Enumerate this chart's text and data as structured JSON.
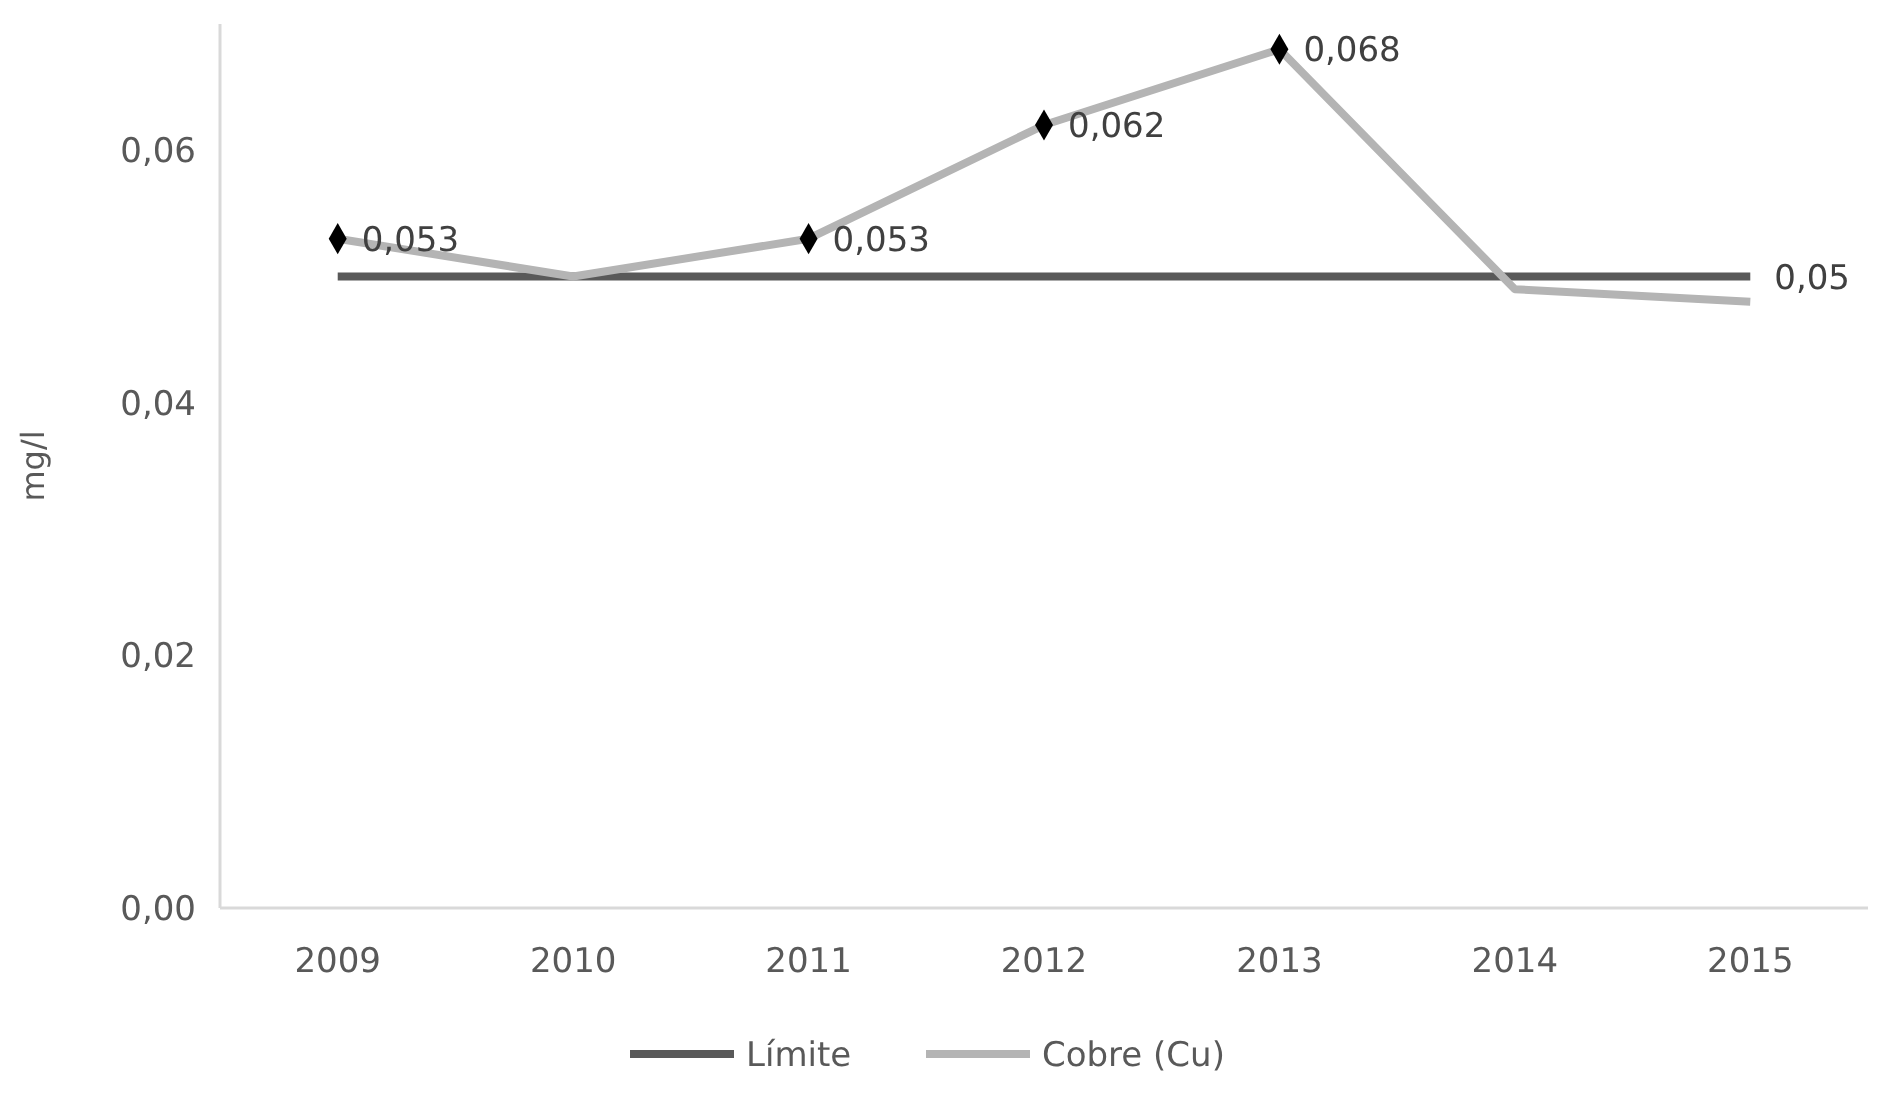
{
  "chart_data": {
    "type": "line",
    "ylabel": "mg/l",
    "categories": [
      "2009",
      "2010",
      "2011",
      "2012",
      "2013",
      "2014",
      "2015"
    ],
    "series": [
      {
        "name": "Límite",
        "color": "#595959",
        "values": [
          0.05,
          0.05,
          0.05,
          0.05,
          0.05,
          0.05,
          0.05
        ],
        "value_labels": [
          null,
          null,
          null,
          null,
          null,
          null,
          "0,05"
        ]
      },
      {
        "name": "Cobre (Cu)",
        "color": "#b4b4b4",
        "values": [
          0.053,
          0.05,
          0.053,
          0.062,
          0.068,
          0.049,
          0.048
        ],
        "value_labels": [
          "0,053",
          null,
          "0,053",
          "0,062",
          "0,068",
          null,
          null
        ],
        "marker": "diamond"
      }
    ],
    "ylim": [
      0,
      0.07
    ],
    "yticks": [
      {
        "value": 0,
        "label": "0,00"
      },
      {
        "value": 0.02,
        "label": "0,02"
      },
      {
        "value": 0.04,
        "label": "0,04"
      },
      {
        "value": 0.06,
        "label": "0,06"
      }
    ],
    "grid": false,
    "legend": "bottom"
  }
}
